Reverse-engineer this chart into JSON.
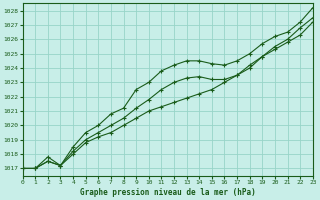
{
  "title": "Graphe pression niveau de la mer (hPa)",
  "background_color": "#c8eee8",
  "grid_color": "#98d4c8",
  "line_color": "#1a5c1a",
  "xlim": [
    0,
    23
  ],
  "ylim": [
    1016.5,
    1028.5
  ],
  "yticks": [
    1017,
    1018,
    1019,
    1020,
    1021,
    1022,
    1023,
    1024,
    1025,
    1026,
    1027,
    1028
  ],
  "xticks": [
    0,
    1,
    2,
    3,
    4,
    5,
    6,
    7,
    8,
    9,
    10,
    11,
    12,
    13,
    14,
    15,
    16,
    17,
    18,
    19,
    20,
    21,
    22,
    23
  ],
  "line_bottom_x": [
    0,
    1,
    2,
    3,
    4,
    5,
    6,
    7,
    8,
    9,
    10,
    11,
    12,
    13,
    14,
    15,
    16,
    17,
    18,
    19,
    20,
    21,
    22,
    23
  ],
  "line_bottom_y": [
    1017.0,
    1017.0,
    1017.5,
    1017.2,
    1018.0,
    1018.8,
    1019.2,
    1019.5,
    1020.0,
    1020.5,
    1021.0,
    1021.3,
    1021.6,
    1021.9,
    1022.2,
    1022.5,
    1023.0,
    1023.5,
    1024.2,
    1024.8,
    1025.3,
    1025.8,
    1026.3,
    1027.2
  ],
  "line_mid_x": [
    0,
    1,
    2,
    3,
    4,
    5,
    6,
    7,
    8,
    9,
    10,
    11,
    12,
    13,
    14,
    15,
    16,
    17,
    18,
    19,
    20,
    21,
    22,
    23
  ],
  "line_mid_y": [
    1017.0,
    1017.0,
    1017.5,
    1017.2,
    1018.2,
    1019.0,
    1019.5,
    1020.0,
    1020.5,
    1021.2,
    1021.8,
    1022.5,
    1023.0,
    1023.3,
    1023.4,
    1023.2,
    1023.2,
    1023.5,
    1024.0,
    1024.8,
    1025.5,
    1026.0,
    1026.8,
    1027.5
  ],
  "line_top_x": [
    0,
    1,
    2,
    3,
    4,
    5,
    6,
    7,
    8,
    9,
    10,
    11,
    12,
    13,
    14,
    15,
    16,
    17,
    18,
    19,
    20,
    21,
    22,
    23
  ],
  "line_top_y": [
    1017.0,
    1017.0,
    1017.8,
    1017.2,
    1018.5,
    1019.5,
    1020.0,
    1020.8,
    1021.2,
    1022.5,
    1023.0,
    1023.8,
    1024.2,
    1024.5,
    1024.5,
    1024.3,
    1024.2,
    1024.5,
    1025.0,
    1025.7,
    1026.2,
    1026.5,
    1027.2,
    1028.2
  ],
  "title_fontsize": 5.5,
  "tick_fontsize": 4.5
}
